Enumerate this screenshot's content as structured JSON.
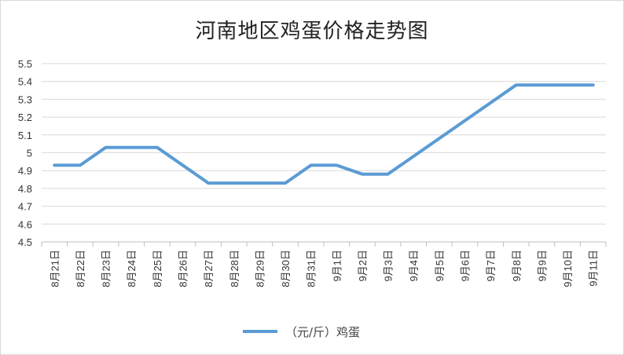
{
  "chart_data": {
    "type": "line",
    "title": "河南地区鸡蛋价格走势图",
    "categories": [
      "8月21日",
      "8月22日",
      "8月23日",
      "8月24日",
      "8月25日",
      "8月26日",
      "8月27日",
      "8月28日",
      "8月29日",
      "8月30日",
      "8月31日",
      "9月1日",
      "9月2日",
      "9月3日",
      "9月4日",
      "9月5日",
      "9月6日",
      "9月7日",
      "9月8日",
      "9月9日",
      "9月10日",
      "9月11日"
    ],
    "series": [
      {
        "name": "（元/斤）鸡蛋",
        "color": "#5b9bd5",
        "values": [
          4.93,
          4.93,
          5.03,
          5.03,
          5.03,
          null,
          4.83,
          4.83,
          4.83,
          4.83,
          4.93,
          4.93,
          4.88,
          4.88,
          null,
          null,
          null,
          null,
          5.38,
          5.38,
          5.38,
          5.38
        ]
      }
    ],
    "yticks": [
      "4.5",
      "4.6",
      "4.7",
      "4.8",
      "4.9",
      "5",
      "5.1",
      "5.2",
      "5.3",
      "5.4",
      "5.5"
    ],
    "ylim": [
      4.5,
      5.5
    ],
    "grid": true,
    "legend": "bottom"
  }
}
